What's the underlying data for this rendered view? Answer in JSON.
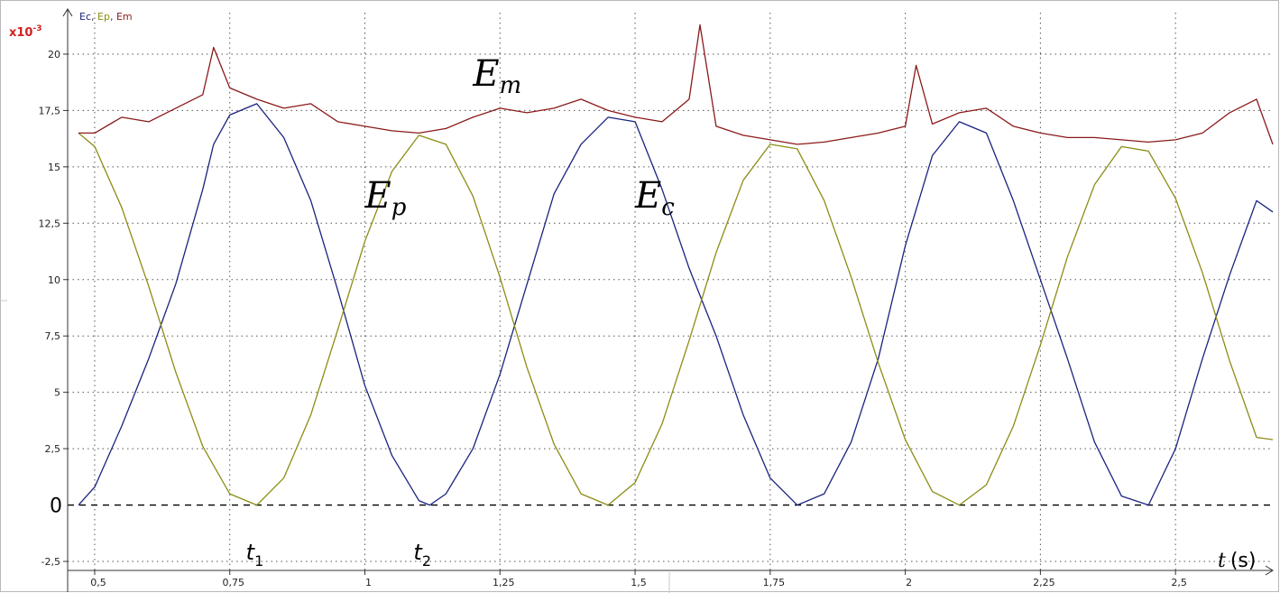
{
  "chart_data": {
    "type": "line",
    "legend_label_sep": ", ",
    "y_multiplier_base": "x10",
    "y_multiplier_exp": "-3",
    "xlim": [
      0.45,
      2.68
    ],
    "ylim": [
      -2.9,
      22
    ],
    "grid": true,
    "legend_placement": "top-left",
    "x_ticks": [
      {
        "v": 0.5,
        "label": "0,5"
      },
      {
        "v": 0.75,
        "label": "0,75"
      },
      {
        "v": 1.0,
        "label": "1"
      },
      {
        "v": 1.25,
        "label": "1,25"
      },
      {
        "v": 1.5,
        "label": "1,5"
      },
      {
        "v": 1.75,
        "label": "1,75"
      },
      {
        "v": 2.0,
        "label": "2"
      },
      {
        "v": 2.25,
        "label": "2,25"
      },
      {
        "v": 2.5,
        "label": "2,5"
      }
    ],
    "y_ticks": [
      {
        "v": -2.5,
        "label": "-2,5"
      },
      {
        "v": 2.5,
        "label": "2,5"
      },
      {
        "v": 5,
        "label": "5"
      },
      {
        "v": 7.5,
        "label": "7,5"
      },
      {
        "v": 10,
        "label": "10"
      },
      {
        "v": 12.5,
        "label": "12,5"
      },
      {
        "v": 15,
        "label": "15"
      },
      {
        "v": 17.5,
        "label": "17,5"
      },
      {
        "v": 20,
        "label": "20"
      }
    ],
    "zero_line": {
      "v": 0,
      "label": "0"
    },
    "x_axis_label": {
      "base": "t",
      "unit": "(s)"
    },
    "time_markers": [
      {
        "x": 0.8,
        "base": "t",
        "sub": "1"
      },
      {
        "x": 1.11,
        "base": "t",
        "sub": "2"
      }
    ],
    "series": [
      {
        "name": "Ec",
        "color": "#1a237e",
        "curve_label": {
          "base": "E",
          "sub": "c",
          "x": 1.5,
          "y": 13.2
        },
        "x": [
          0.47,
          0.5,
          0.55,
          0.6,
          0.65,
          0.7,
          0.72,
          0.75,
          0.8,
          0.85,
          0.9,
          0.95,
          1.0,
          1.05,
          1.1,
          1.12,
          1.15,
          1.2,
          1.25,
          1.3,
          1.35,
          1.4,
          1.45,
          1.5,
          1.55,
          1.6,
          1.65,
          1.7,
          1.75,
          1.8,
          1.85,
          1.9,
          1.95,
          2.0,
          2.05,
          2.1,
          2.15,
          2.2,
          2.25,
          2.3,
          2.35,
          2.4,
          2.45,
          2.5,
          2.55,
          2.6,
          2.65,
          2.68
        ],
        "y": [
          0.0,
          0.8,
          3.5,
          6.5,
          9.8,
          14.0,
          16.0,
          17.3,
          17.8,
          16.3,
          13.5,
          9.5,
          5.3,
          2.2,
          0.2,
          0.0,
          0.5,
          2.5,
          5.8,
          9.8,
          13.8,
          16.0,
          17.2,
          17.0,
          14.0,
          10.5,
          7.5,
          4.0,
          1.2,
          0.0,
          0.5,
          2.8,
          6.5,
          11.5,
          15.5,
          17.0,
          16.5,
          13.5,
          10.0,
          6.5,
          2.8,
          0.4,
          0.0,
          2.5,
          6.5,
          10.2,
          13.5,
          13.0
        ]
      },
      {
        "name": "Ep",
        "color": "#8c8c14",
        "curve_label": {
          "base": "E",
          "sub": "p",
          "x": 1.0,
          "y": 13.2
        },
        "x": [
          0.47,
          0.5,
          0.55,
          0.6,
          0.65,
          0.7,
          0.75,
          0.8,
          0.85,
          0.9,
          0.95,
          1.0,
          1.05,
          1.1,
          1.15,
          1.2,
          1.25,
          1.3,
          1.35,
          1.4,
          1.45,
          1.5,
          1.55,
          1.6,
          1.65,
          1.7,
          1.75,
          1.8,
          1.85,
          1.9,
          1.95,
          2.0,
          2.05,
          2.1,
          2.15,
          2.2,
          2.25,
          2.3,
          2.35,
          2.4,
          2.45,
          2.5,
          2.55,
          2.6,
          2.65,
          2.68
        ],
        "y": [
          16.5,
          15.9,
          13.2,
          9.7,
          5.9,
          2.6,
          0.5,
          0.0,
          1.2,
          4.0,
          7.8,
          11.7,
          14.8,
          16.4,
          16.0,
          13.7,
          10.1,
          6.1,
          2.7,
          0.5,
          0.0,
          1.0,
          3.6,
          7.3,
          11.2,
          14.4,
          16.0,
          15.8,
          13.5,
          10.1,
          6.3,
          2.9,
          0.6,
          0.0,
          0.9,
          3.5,
          7.1,
          11.0,
          14.2,
          15.9,
          15.7,
          13.6,
          10.3,
          6.4,
          3.0,
          2.9
        ]
      },
      {
        "name": "Em",
        "color": "#8b1a1a",
        "curve_label": {
          "base": "E",
          "sub": "m",
          "x": 1.2,
          "y": 18.6
        },
        "x": [
          0.47,
          0.5,
          0.55,
          0.6,
          0.65,
          0.7,
          0.72,
          0.75,
          0.8,
          0.85,
          0.9,
          0.95,
          1.0,
          1.05,
          1.1,
          1.15,
          1.2,
          1.25,
          1.3,
          1.35,
          1.4,
          1.45,
          1.5,
          1.55,
          1.6,
          1.62,
          1.65,
          1.7,
          1.75,
          1.8,
          1.85,
          1.9,
          1.95,
          2.0,
          2.02,
          2.05,
          2.1,
          2.15,
          2.2,
          2.25,
          2.3,
          2.35,
          2.4,
          2.45,
          2.5,
          2.55,
          2.6,
          2.65,
          2.68
        ],
        "y": [
          16.5,
          16.5,
          17.2,
          17.0,
          17.6,
          18.2,
          20.3,
          18.5,
          18.0,
          17.6,
          17.8,
          17.0,
          16.8,
          16.6,
          16.5,
          16.7,
          17.2,
          17.6,
          17.4,
          17.6,
          18.0,
          17.5,
          17.2,
          17.0,
          18.0,
          21.3,
          16.8,
          16.4,
          16.2,
          16.0,
          16.1,
          16.3,
          16.5,
          16.8,
          19.5,
          16.9,
          17.4,
          17.6,
          16.8,
          16.5,
          16.3,
          16.3,
          16.2,
          16.1,
          16.2,
          16.5,
          17.4,
          18.0,
          16.0
        ]
      }
    ]
  }
}
